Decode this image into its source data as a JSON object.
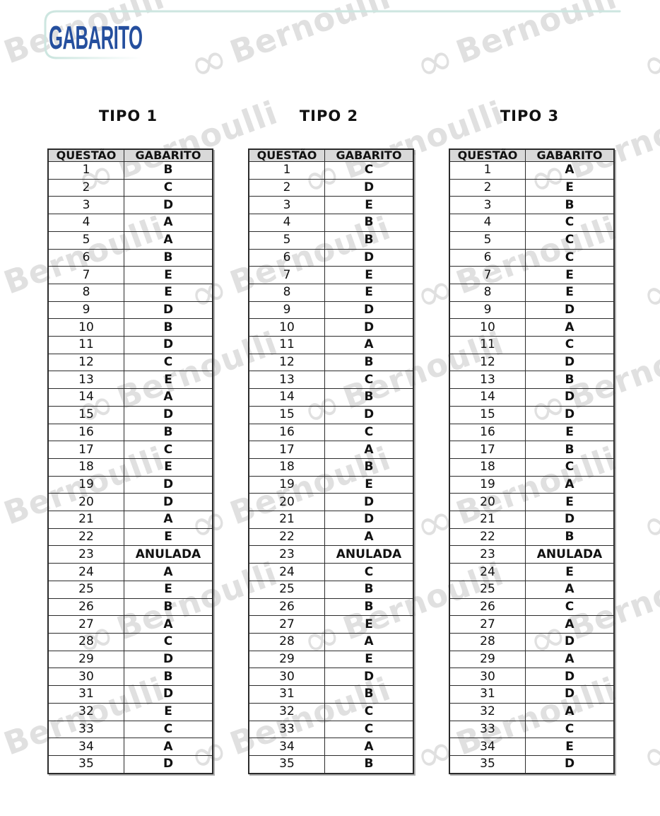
{
  "page": {
    "title": "GABARITO",
    "watermark": {
      "infinity": "∞",
      "text": "Bernoulli"
    }
  },
  "colors": {
    "title_blue": "#254f9e",
    "accent_teal": "#cde6e0",
    "table_header_bg": "#d9d9d9",
    "watermark_gray": "#e0e0e0"
  },
  "tables": [
    {
      "heading": "TIPO 1",
      "columns": [
        "QUESTÃO",
        "GABARITO"
      ],
      "answers": [
        "B",
        "C",
        "D",
        "A",
        "A",
        "B",
        "E",
        "E",
        "D",
        "B",
        "D",
        "C",
        "E",
        "A",
        "D",
        "B",
        "C",
        "E",
        "D",
        "D",
        "A",
        "E",
        "ANULADA",
        "A",
        "E",
        "B",
        "A",
        "C",
        "D",
        "B",
        "D",
        "E",
        "C",
        "A",
        "D"
      ]
    },
    {
      "heading": "TIPO 2",
      "columns": [
        "QUESTÃO",
        "GABARITO"
      ],
      "answers": [
        "C",
        "D",
        "E",
        "B",
        "B",
        "D",
        "E",
        "E",
        "D",
        "D",
        "A",
        "B",
        "C",
        "B",
        "D",
        "C",
        "A",
        "B",
        "E",
        "D",
        "D",
        "A",
        "ANULADA",
        "C",
        "B",
        "B",
        "E",
        "A",
        "E",
        "D",
        "B",
        "C",
        "C",
        "A",
        "B"
      ]
    },
    {
      "heading": "TIPO 3",
      "columns": [
        "QUESTÃO",
        "GABARITO"
      ],
      "answers": [
        "A",
        "E",
        "B",
        "C",
        "C",
        "C",
        "E",
        "E",
        "D",
        "A",
        "C",
        "D",
        "B",
        "D",
        "D",
        "E",
        "B",
        "C",
        "A",
        "E",
        "D",
        "B",
        "ANULADA",
        "E",
        "A",
        "C",
        "A",
        "D",
        "A",
        "D",
        "D",
        "A",
        "C",
        "E",
        "D"
      ]
    }
  ]
}
